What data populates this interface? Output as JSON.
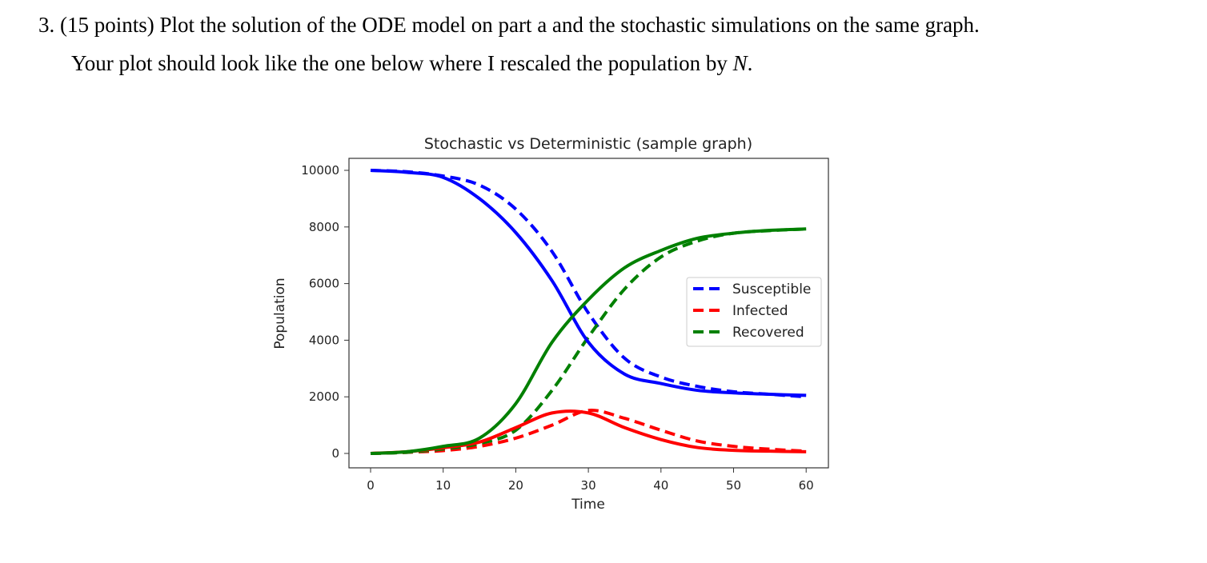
{
  "question": {
    "line1": "3. (15 points) Plot the solution of the ODE model on part a and the stochastic simulations on the same graph.",
    "line2_prefix": "Your plot should look like the one below where I rescaled the population by ",
    "line2_var": "N",
    "line2_suffix": "."
  },
  "chart_data": {
    "type": "line",
    "title": "Stochastic vs Deterministic (sample graph)",
    "xlabel": "Time",
    "ylabel": "Population",
    "xlim": [
      -3,
      63
    ],
    "ylim": [
      -500,
      10400
    ],
    "xticks": [
      0,
      10,
      20,
      30,
      40,
      50,
      60
    ],
    "yticks": [
      0,
      2000,
      4000,
      6000,
      8000,
      10000
    ],
    "grid": false,
    "legend": {
      "placement": "center-right",
      "entries": [
        "Susceptible",
        "Infected",
        "Recovered"
      ]
    },
    "x": [
      0,
      5,
      10,
      15,
      20,
      25,
      30,
      35,
      40,
      45,
      50,
      55,
      60
    ],
    "series": [
      {
        "name": "Susceptible",
        "style": "dashed",
        "color": "#0000ff",
        "values": [
          10000,
          9950,
          9800,
          9480,
          8630,
          7130,
          4960,
          3360,
          2700,
          2370,
          2180,
          2090,
          2000
        ]
      },
      {
        "name": "Infected",
        "style": "dashed",
        "color": "#ff0000",
        "values": [
          0,
          40,
          100,
          250,
          540,
          1000,
          1520,
          1240,
          820,
          440,
          250,
          150,
          80
        ]
      },
      {
        "name": "Recovered",
        "style": "dashed",
        "color": "#008000",
        "values": [
          0,
          40,
          160,
          350,
          820,
          2230,
          4110,
          5810,
          6940,
          7500,
          7780,
          7870,
          7930
        ]
      },
      {
        "style": "solid",
        "color": "#0000ff",
        "values": [
          10000,
          9930,
          9750,
          9000,
          7800,
          6100,
          3930,
          2800,
          2470,
          2230,
          2140,
          2090,
          2050
        ]
      },
      {
        "style": "solid",
        "color": "#ff0000",
        "values": [
          0,
          60,
          200,
          400,
          910,
          1430,
          1430,
          910,
          490,
          210,
          110,
          80,
          60
        ]
      },
      {
        "style": "solid",
        "color": "#008000",
        "values": [
          0,
          60,
          250,
          540,
          1760,
          3930,
          5430,
          6560,
          7170,
          7600,
          7780,
          7880,
          7930
        ]
      }
    ]
  }
}
